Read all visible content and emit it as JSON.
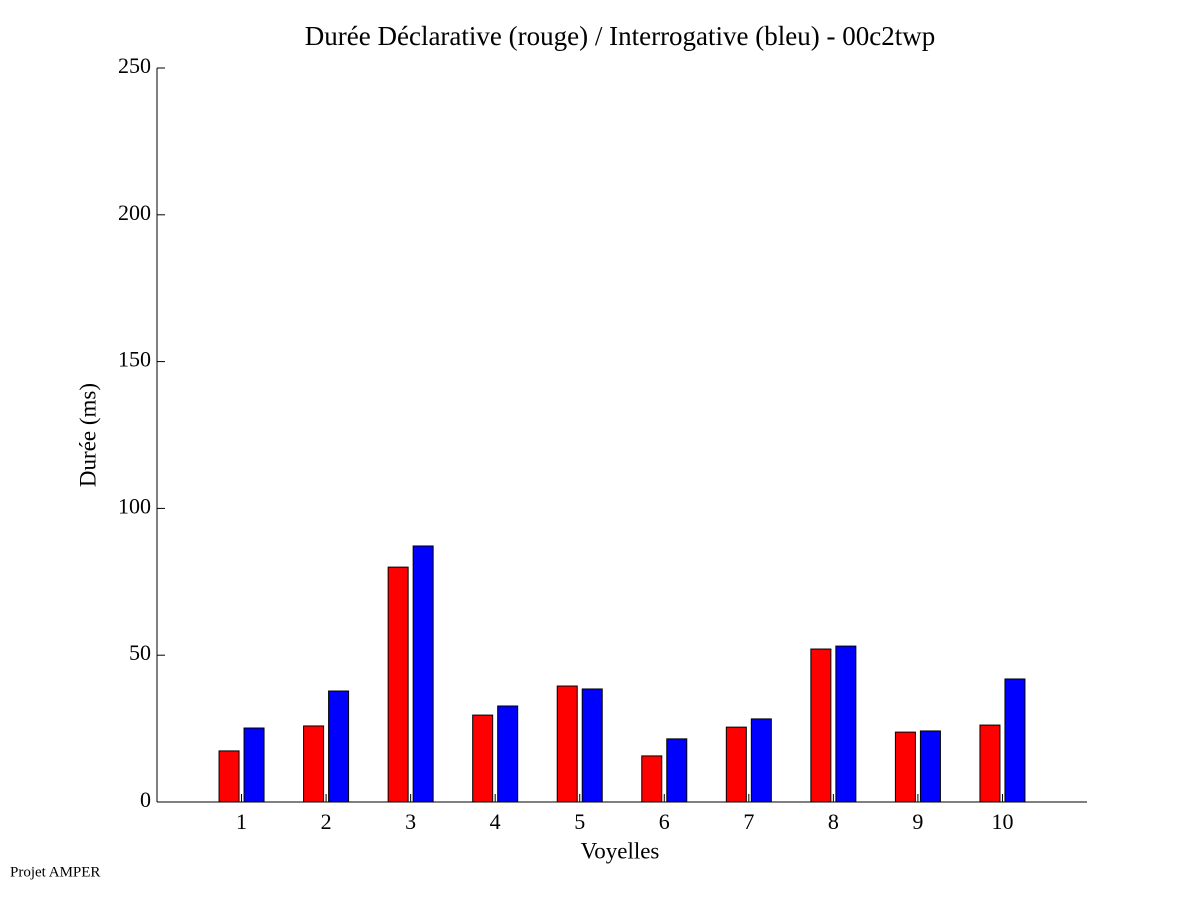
{
  "chart_data": {
    "type": "bar",
    "title": "Durée Déclarative (rouge) / Interrogative (bleu) - 00c2twp",
    "x_label": "Voyelles",
    "y_label": "Durée (ms)",
    "footer": "Projet AMPER",
    "categories": [
      "1",
      "2",
      "3",
      "4",
      "5",
      "6",
      "7",
      "8",
      "9",
      "10"
    ],
    "series": [
      {
        "color": "#ff0000",
        "values": [
          17.4,
          25.9,
          80,
          29.6,
          39.5,
          15.7,
          25.5,
          52.1,
          23.8,
          26.2
        ]
      },
      {
        "color": "#0000ff",
        "values": [
          25.2,
          37.8,
          87.2,
          32.7,
          38.5,
          21.5,
          28.3,
          53.1,
          24.2,
          41.9
        ]
      }
    ],
    "ylim": [
      0,
      250
    ],
    "yticks": [
      0,
      50,
      100,
      150,
      200,
      250
    ],
    "grid": false
  }
}
